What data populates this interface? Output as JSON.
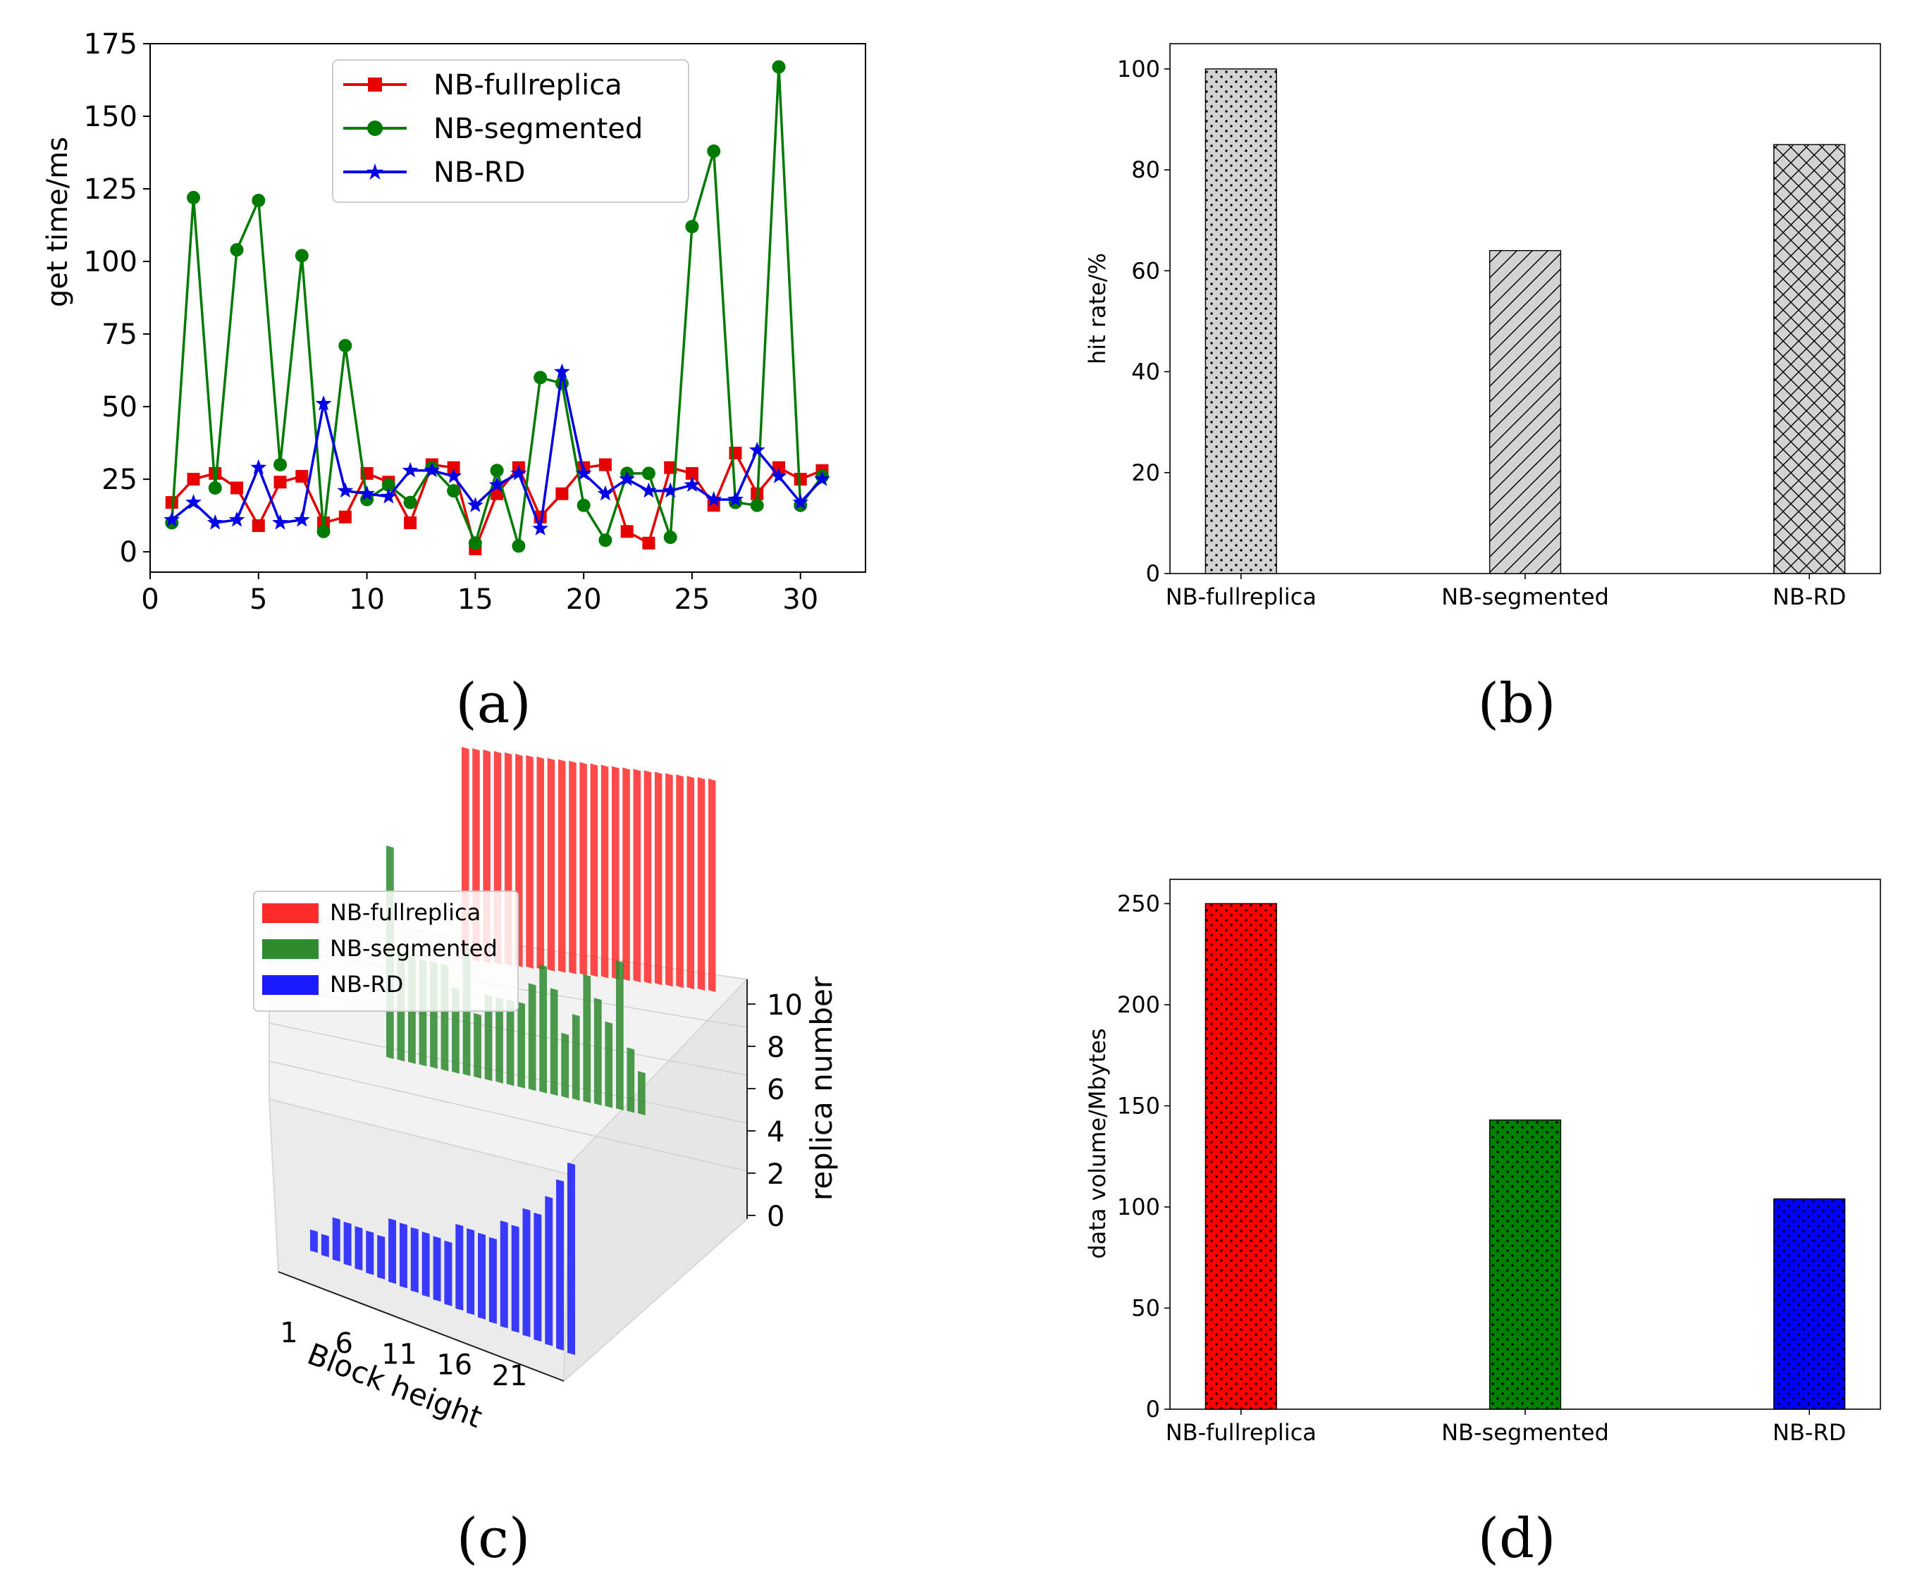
{
  "chart_data": [
    {
      "id": "a",
      "type": "line",
      "panel_label": "(a)",
      "xlabel": "",
      "ylabel": "get time/ms",
      "xlim": [
        0,
        33
      ],
      "ylim": [
        -7,
        175
      ],
      "xticks": [
        0,
        5,
        10,
        15,
        20,
        25,
        30
      ],
      "yticks": [
        0,
        25,
        50,
        75,
        100,
        125,
        150,
        175
      ],
      "legend": "upper-center",
      "x": [
        1,
        2,
        3,
        4,
        5,
        6,
        7,
        8,
        9,
        10,
        11,
        12,
        13,
        14,
        15,
        16,
        17,
        18,
        19,
        20,
        21,
        22,
        23,
        24,
        25,
        26,
        27,
        28,
        29,
        30,
        31
      ],
      "series": [
        {
          "name": "NB-fullreplica",
          "color": "#e60000",
          "marker": "square",
          "values": [
            17,
            25,
            27,
            22,
            9,
            24,
            26,
            10,
            12,
            27,
            24,
            10,
            30,
            29,
            1,
            20,
            29,
            12,
            20,
            29,
            30,
            7,
            3,
            29,
            27,
            16,
            34,
            20,
            29,
            25,
            28
          ]
        },
        {
          "name": "NB-segmented",
          "color": "#007a00",
          "marker": "circle",
          "values": [
            10,
            122,
            22,
            104,
            121,
            30,
            102,
            7,
            71,
            18,
            23,
            17,
            29,
            21,
            3,
            28,
            2,
            60,
            58,
            16,
            4,
            27,
            27,
            5,
            112,
            138,
            17,
            16,
            167,
            16,
            26
          ]
        },
        {
          "name": "NB-RD",
          "color": "#0000e6",
          "marker": "star",
          "values": [
            11,
            17,
            10,
            11,
            29,
            10,
            11,
            51,
            21,
            20,
            19,
            28,
            28,
            26,
            16,
            23,
            27,
            8,
            62,
            27,
            20,
            25,
            21,
            21,
            23,
            18,
            18,
            35,
            26,
            17,
            25
          ]
        }
      ]
    },
    {
      "id": "b",
      "type": "bar",
      "panel_label": "(b)",
      "xlabel": "",
      "ylabel": "hit rate/%",
      "ylim": [
        0,
        105
      ],
      "yticks": [
        0,
        20,
        40,
        60,
        80,
        100
      ],
      "categories": [
        "NB-fullreplica",
        "NB-segmented",
        "NB-RD"
      ],
      "values": [
        100,
        64,
        85
      ],
      "hatches": [
        "dots",
        "diagonal",
        "crosshatch"
      ],
      "color": "#d3d3d3"
    },
    {
      "id": "c",
      "type": "bar3d",
      "panel_label": "(c)",
      "xlabel": "Block height",
      "zlabel": "replica number",
      "xticks": [
        1,
        6,
        11,
        16,
        21
      ],
      "zticks": [
        0,
        2,
        4,
        6,
        8,
        10
      ],
      "zlim": [
        0,
        10
      ],
      "legend": "upper-left",
      "x": [
        1,
        2,
        3,
        4,
        5,
        6,
        7,
        8,
        9,
        10,
        11,
        12,
        13,
        14,
        15,
        16,
        17,
        18,
        19,
        20,
        21,
        22,
        23,
        24
      ],
      "series": [
        {
          "name": "NB-fullreplica",
          "color": "#ff2a2a",
          "values": [
            10,
            10,
            10,
            10,
            10,
            10,
            10,
            10,
            10,
            10,
            10,
            10,
            10,
            10,
            10,
            10,
            10,
            10,
            10,
            10,
            10,
            10,
            10,
            10
          ]
        },
        {
          "name": "NB-segmented",
          "color": "#2e8b2e",
          "values": [
            10,
            5,
            5,
            5,
            5,
            5,
            4,
            6,
            3,
            4,
            4,
            4,
            4,
            5,
            6,
            5,
            3,
            4,
            6,
            5,
            4,
            7,
            3,
            2
          ]
        },
        {
          "name": "NB-RD",
          "color": "#1a1aff",
          "values": [
            1,
            1,
            2,
            2,
            2,
            2,
            2,
            3,
            3,
            3,
            3,
            3,
            3,
            4,
            4,
            4,
            4,
            5,
            5,
            6,
            6,
            7,
            8,
            9
          ]
        }
      ]
    },
    {
      "id": "d",
      "type": "bar",
      "panel_label": "(d)",
      "xlabel": "",
      "ylabel": "data volume/Mbytes",
      "ylim": [
        0,
        262
      ],
      "yticks": [
        0,
        50,
        100,
        150,
        200,
        250
      ],
      "categories": [
        "NB-fullreplica",
        "NB-segmented",
        "NB-RD"
      ],
      "values": [
        250,
        143,
        104
      ],
      "colors": [
        "#ff0000",
        "#008000",
        "#0000ff"
      ],
      "hatch": "dots"
    }
  ]
}
